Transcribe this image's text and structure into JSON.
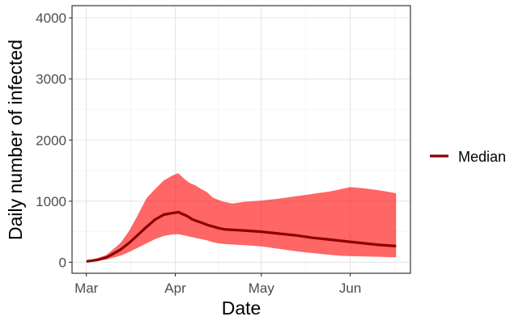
{
  "chart_data": {
    "type": "area",
    "xlabel": "Date",
    "ylabel": "Daily number of infected",
    "x_ticks": [
      {
        "date": "2020-03-01",
        "label": "Mar"
      },
      {
        "date": "2020-04-01",
        "label": "Apr"
      },
      {
        "date": "2020-05-01",
        "label": "May"
      },
      {
        "date": "2020-06-01",
        "label": "Jun"
      }
    ],
    "y_ticks": [
      0,
      1000,
      2000,
      3000,
      4000
    ],
    "ylim": [
      -180,
      4200
    ],
    "xlim": [
      "2020-02-25",
      "2020-06-22"
    ],
    "grid": true,
    "legend": {
      "position": "right",
      "entries": [
        {
          "label": "Median",
          "color": "#8b0000"
        }
      ]
    },
    "series": [
      {
        "name": "Median",
        "type": "line",
        "color": "#8b0000",
        "x": [
          "2020-03-01",
          "2020-03-05",
          "2020-03-08",
          "2020-03-10",
          "2020-03-13",
          "2020-03-16",
          "2020-03-19",
          "2020-03-22",
          "2020-03-25",
          "2020-03-28",
          "2020-03-31",
          "2020-04-02",
          "2020-04-05",
          "2020-04-07",
          "2020-04-10",
          "2020-04-13",
          "2020-04-16",
          "2020-04-18",
          "2020-04-21",
          "2020-04-25",
          "2020-05-01",
          "2020-05-07",
          "2020-05-13",
          "2020-05-19",
          "2020-05-25",
          "2020-06-01",
          "2020-06-06",
          "2020-06-11",
          "2020-06-17"
        ],
        "y": [
          15,
          40,
          80,
          130,
          210,
          320,
          450,
          580,
          700,
          780,
          805,
          820,
          760,
          700,
          650,
          600,
          560,
          540,
          530,
          520,
          500,
          470,
          440,
          400,
          370,
          335,
          310,
          285,
          265
        ]
      },
      {
        "name": "",
        "type": "band",
        "color": "#ff0000",
        "opacity": 0.6,
        "x": [
          "2020-03-01",
          "2020-03-05",
          "2020-03-08",
          "2020-03-10",
          "2020-03-13",
          "2020-03-16",
          "2020-03-19",
          "2020-03-22",
          "2020-03-25",
          "2020-03-28",
          "2020-03-31",
          "2020-04-02",
          "2020-04-04",
          "2020-04-06",
          "2020-04-08",
          "2020-04-10",
          "2020-04-12",
          "2020-04-14",
          "2020-04-16",
          "2020-04-18",
          "2020-04-21",
          "2020-04-25",
          "2020-05-01",
          "2020-05-07",
          "2020-05-13",
          "2020-05-19",
          "2020-05-25",
          "2020-05-29",
          "2020-06-01",
          "2020-06-06",
          "2020-06-11",
          "2020-06-17"
        ],
        "upper": [
          25,
          70,
          120,
          200,
          320,
          520,
          780,
          1050,
          1200,
          1340,
          1420,
          1460,
          1370,
          1300,
          1260,
          1200,
          1150,
          1060,
          1020,
          990,
          960,
          990,
          1010,
          1040,
          1080,
          1120,
          1160,
          1200,
          1230,
          1210,
          1180,
          1130
        ],
        "lower": [
          10,
          25,
          45,
          70,
          110,
          170,
          240,
          310,
          380,
          430,
          455,
          460,
          440,
          420,
          400,
          380,
          360,
          330,
          310,
          300,
          290,
          280,
          260,
          220,
          180,
          150,
          120,
          105,
          100,
          95,
          90,
          80
        ]
      }
    ]
  }
}
